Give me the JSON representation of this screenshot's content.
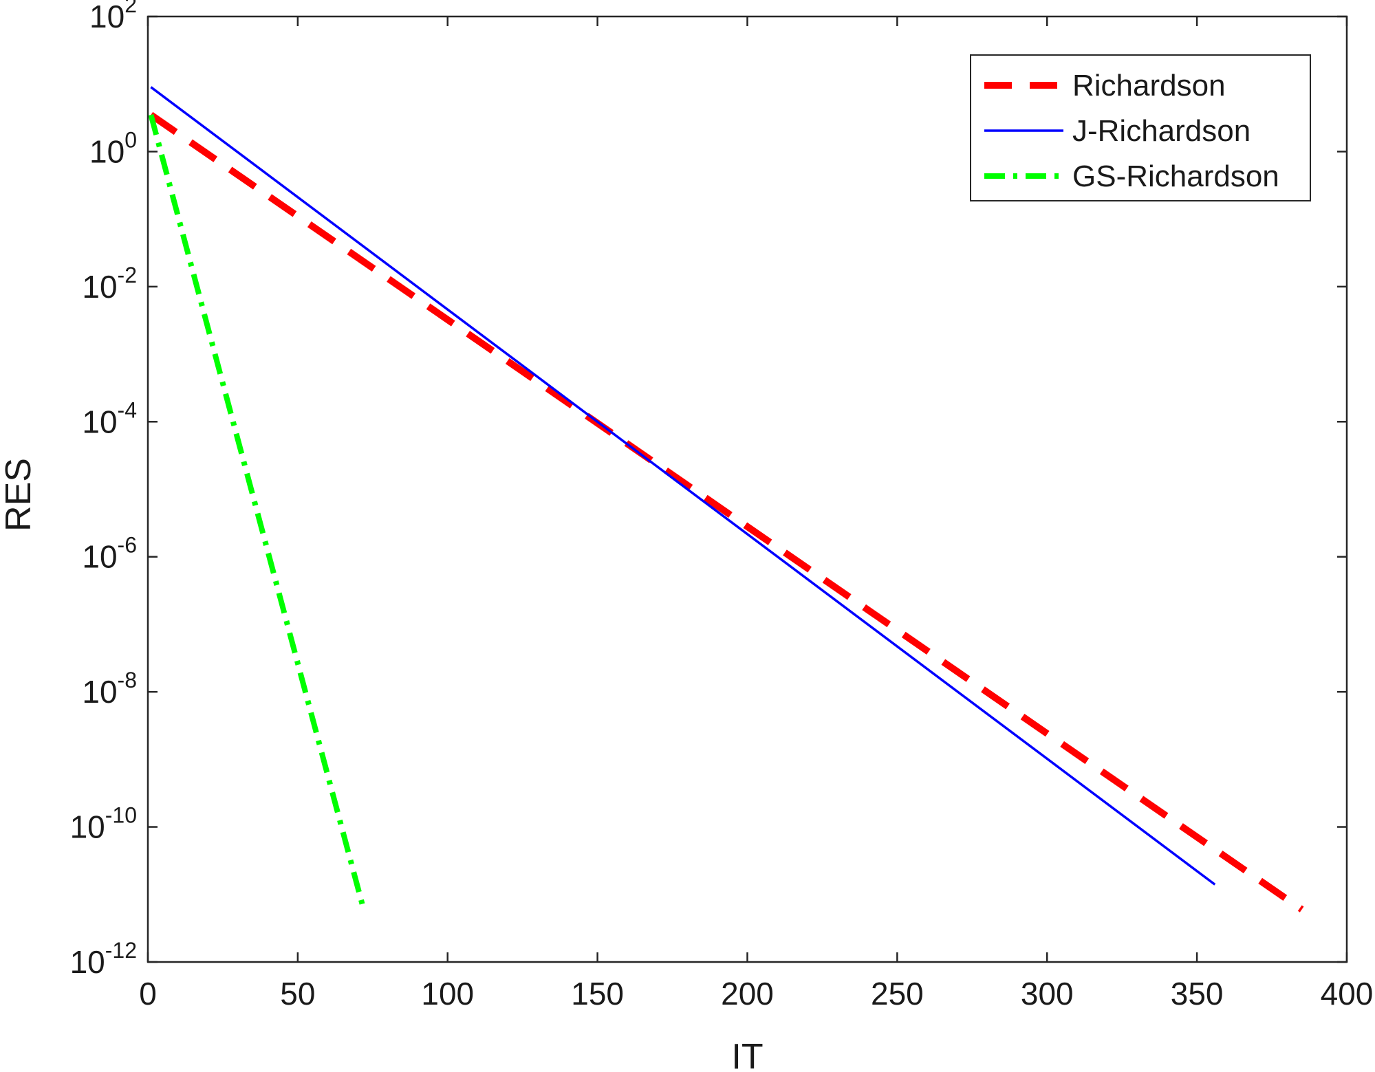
{
  "chart_data": {
    "type": "line",
    "title": "",
    "xlabel": "IT",
    "ylabel": "RES",
    "xlim": [
      0,
      400
    ],
    "ylim": [
      1e-12,
      100
    ],
    "xscale": "linear",
    "yscale": "log",
    "grid": false,
    "legend_position": "top-right",
    "x_ticks": [
      "0",
      "50",
      "100",
      "150",
      "200",
      "250",
      "300",
      "350",
      "400"
    ],
    "y_ticks": [
      {
        "base": "10",
        "exp": "2"
      },
      {
        "base": "10",
        "exp": "0"
      },
      {
        "base": "10",
        "exp": "-2"
      },
      {
        "base": "10",
        "exp": "-4"
      },
      {
        "base": "10",
        "exp": "-6"
      },
      {
        "base": "10",
        "exp": "-8"
      },
      {
        "base": "10",
        "exp": "-10"
      },
      {
        "base": "10",
        "exp": "-12"
      }
    ],
    "series": [
      {
        "name": "Richardson",
        "color": "#ff0000",
        "style": "dashed",
        "x": [
          1,
          385
        ],
        "y": [
          3.5,
          6e-12
        ]
      },
      {
        "name": "J-Richardson",
        "color": "#0000ff",
        "style": "solid",
        "x": [
          1,
          356
        ],
        "y": [
          9,
          1.4e-11
        ]
      },
      {
        "name": "GS-Richardson",
        "color": "#00ff00",
        "style": "dash-dot",
        "x": [
          1,
          72
        ],
        "y": [
          3.5,
          6e-12
        ]
      }
    ]
  }
}
